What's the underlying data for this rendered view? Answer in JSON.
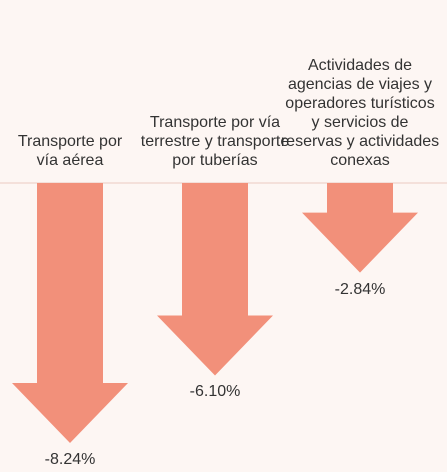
{
  "chart_data": {
    "type": "arrow",
    "categories": [
      "Transporte por vía aérea",
      "Transporte por vía terrestre y transporte por tuberías",
      "Actividades de agencias de viajes y operadores turísticos y servicios de reservas y actividades conexas"
    ],
    "values": [
      -8.24,
      -6.1,
      -2.84
    ],
    "value_labels": [
      "-8.24%",
      "-6.10%",
      "-2.84%"
    ],
    "color": "#f2907a"
  }
}
